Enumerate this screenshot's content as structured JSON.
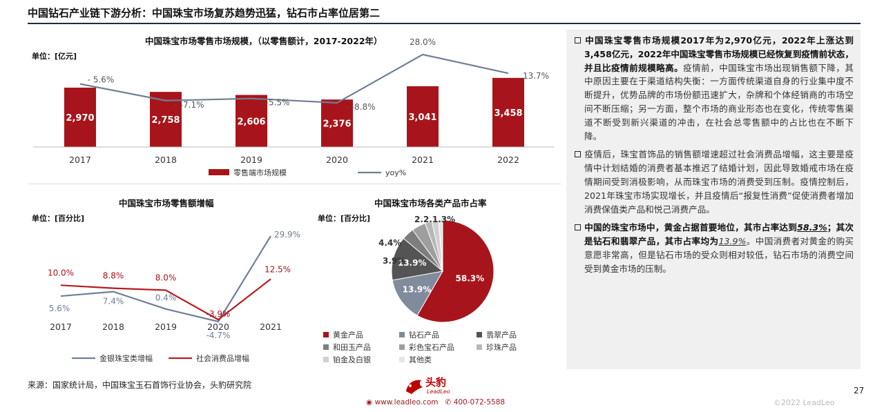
{
  "page": {
    "title": "中国钻石产业链下游分析：中国珠宝市场复苏趋势迅猛，钻石市占率位居第二",
    "source": "来源：国家统计局，中国珠宝玉石首饰行业协会，头豹研究院",
    "page_number": "27",
    "copyright": "©2022 LeadLeo",
    "website": "www.leadleo.com",
    "phone": "400-072-5588",
    "logo_text": "头豹",
    "logo_sub": "LeadLeo",
    "watermark": "头豹"
  },
  "colors": {
    "bar": "#a8141b",
    "line_gray": "#6e7f96",
    "line_red": "#b81c22"
  },
  "chart_data": [
    {
      "type": "bar",
      "title": "中国珠宝市场零售市场规模，（以零售额计，2017-2022年）",
      "unit": "单位：[亿元]",
      "categories": [
        "2017",
        "2018",
        "2019",
        "2020",
        "2021",
        "2022"
      ],
      "series": [
        {
          "name": "零售端市场规模",
          "values": [
            2970,
            2758,
            2606,
            2376,
            3041,
            3458
          ],
          "labels": [
            "2,970",
            "2,758",
            "2,606",
            "2,376",
            "3,041",
            "3,458"
          ]
        },
        {
          "name": "yoy%",
          "type": "line",
          "values": [
            5.6,
            -7.1,
            -5.5,
            -8.8,
            28.0,
            13.7
          ],
          "labels": [
            "5.6%",
            "-7.1%",
            "-5.5%",
            "-8.8%",
            "28.0%",
            "13.7%"
          ]
        }
      ]
    },
    {
      "type": "line",
      "title": "中国珠宝市场零售额增幅",
      "unit": "单位：[百分比]",
      "categories": [
        "2017",
        "2018",
        "2019",
        "2020",
        "2021"
      ],
      "series": [
        {
          "name": "金银珠宝类增幅",
          "values": [
            5.6,
            7.4,
            0.4,
            -4.7,
            29.9
          ],
          "labels": [
            "5.6%",
            "7.4%",
            "0.4%",
            "-4.7%",
            "29.9%"
          ]
        },
        {
          "name": "社会消费品增幅",
          "values": [
            10.0,
            8.8,
            8.0,
            -3.9,
            12.5
          ],
          "labels": [
            "10.0%",
            "8.8%",
            "8.0%",
            "-3.9%",
            "12.5%"
          ]
        }
      ]
    },
    {
      "type": "pie",
      "title": "中国珠宝市场各类产品市占率",
      "unit": "单位：[百分比]",
      "slices": [
        {
          "name": "黄金产品",
          "value": 58.3,
          "label": "58.3%",
          "color": "#a8141b"
        },
        {
          "name": "钻石产品",
          "value": 13.9,
          "label": "13.9%",
          "color": "#808b9c"
        },
        {
          "name": "翡翠产品",
          "value": 13.9,
          "label": "13.9%",
          "color": "#545454"
        },
        {
          "name": "和田玉产品",
          "value": 3.9,
          "label": "3.9%",
          "color": "#7d7d7d"
        },
        {
          "name": "彩色宝石产品",
          "value": 4.4,
          "label": "4.4%",
          "color": "#9e9e9e"
        },
        {
          "name": "珍珠产品",
          "value": 2.2,
          "label": "2.2%",
          "color": "#b8b8b8"
        },
        {
          "name": "铂金及白银",
          "value": 2.1,
          "label": "2.1%",
          "color": "#d0d0d0"
        },
        {
          "name": "其他类",
          "value": 1.3,
          "label": "1.3%",
          "color": "#e6e6e6"
        }
      ],
      "overlap_label": "2.2.1.3%"
    }
  ],
  "right_panel": {
    "paragraphs": [
      {
        "bold": "中国珠宝零售市场规模2017年为2,970亿元，2022年上涨达到3,458亿元，2022年中国珠宝零售市场规模已经恢复到疫情前状态，并且比疫情前规模略高。",
        "text": "疫情前，中国珠宝市场出现销售额下降，其中原因主要在于渠道结构失衡：一方面传统渠道自身的行业集中度不断提升，优势品牌的市场份额迅速扩大，杂牌和个体经销商的市场空间不断压缩；另一方面，整个市场的商业形态也在变化，传统零售渠道不断受到新兴渠道的冲击，在社会总零售额中的占比也在不断下降。"
      },
      {
        "bold": "",
        "text": "疫情后，珠宝首饰品的销售额增速超过社会消费品增幅，这主要是疫情中计划结婚的消费者基本推迟了结婚计划，因此导致婚戒市场在疫情期间受到消极影响，从而珠宝市场的消费受到压制。疫情控制后，2021年珠宝市场实现增长，并且疫情后“报复性消费”促使消费者增加消费保值类产品和悦己消费产品。"
      },
      {
        "bold_a": "中国的珠宝市场中，黄金占据首要地位，其市占率达到",
        "hl_a": "58.3%",
        "bold_b": "；其次是钻石和翡翠产品，其市占率均为",
        "hl_b": "13.9%",
        "text": "。中国消费者对黄金的购买意愿非常高，但是钻石市场的受众则相对较低，钻石市场的消费空间受到黄金市场的压制。"
      }
    ]
  }
}
